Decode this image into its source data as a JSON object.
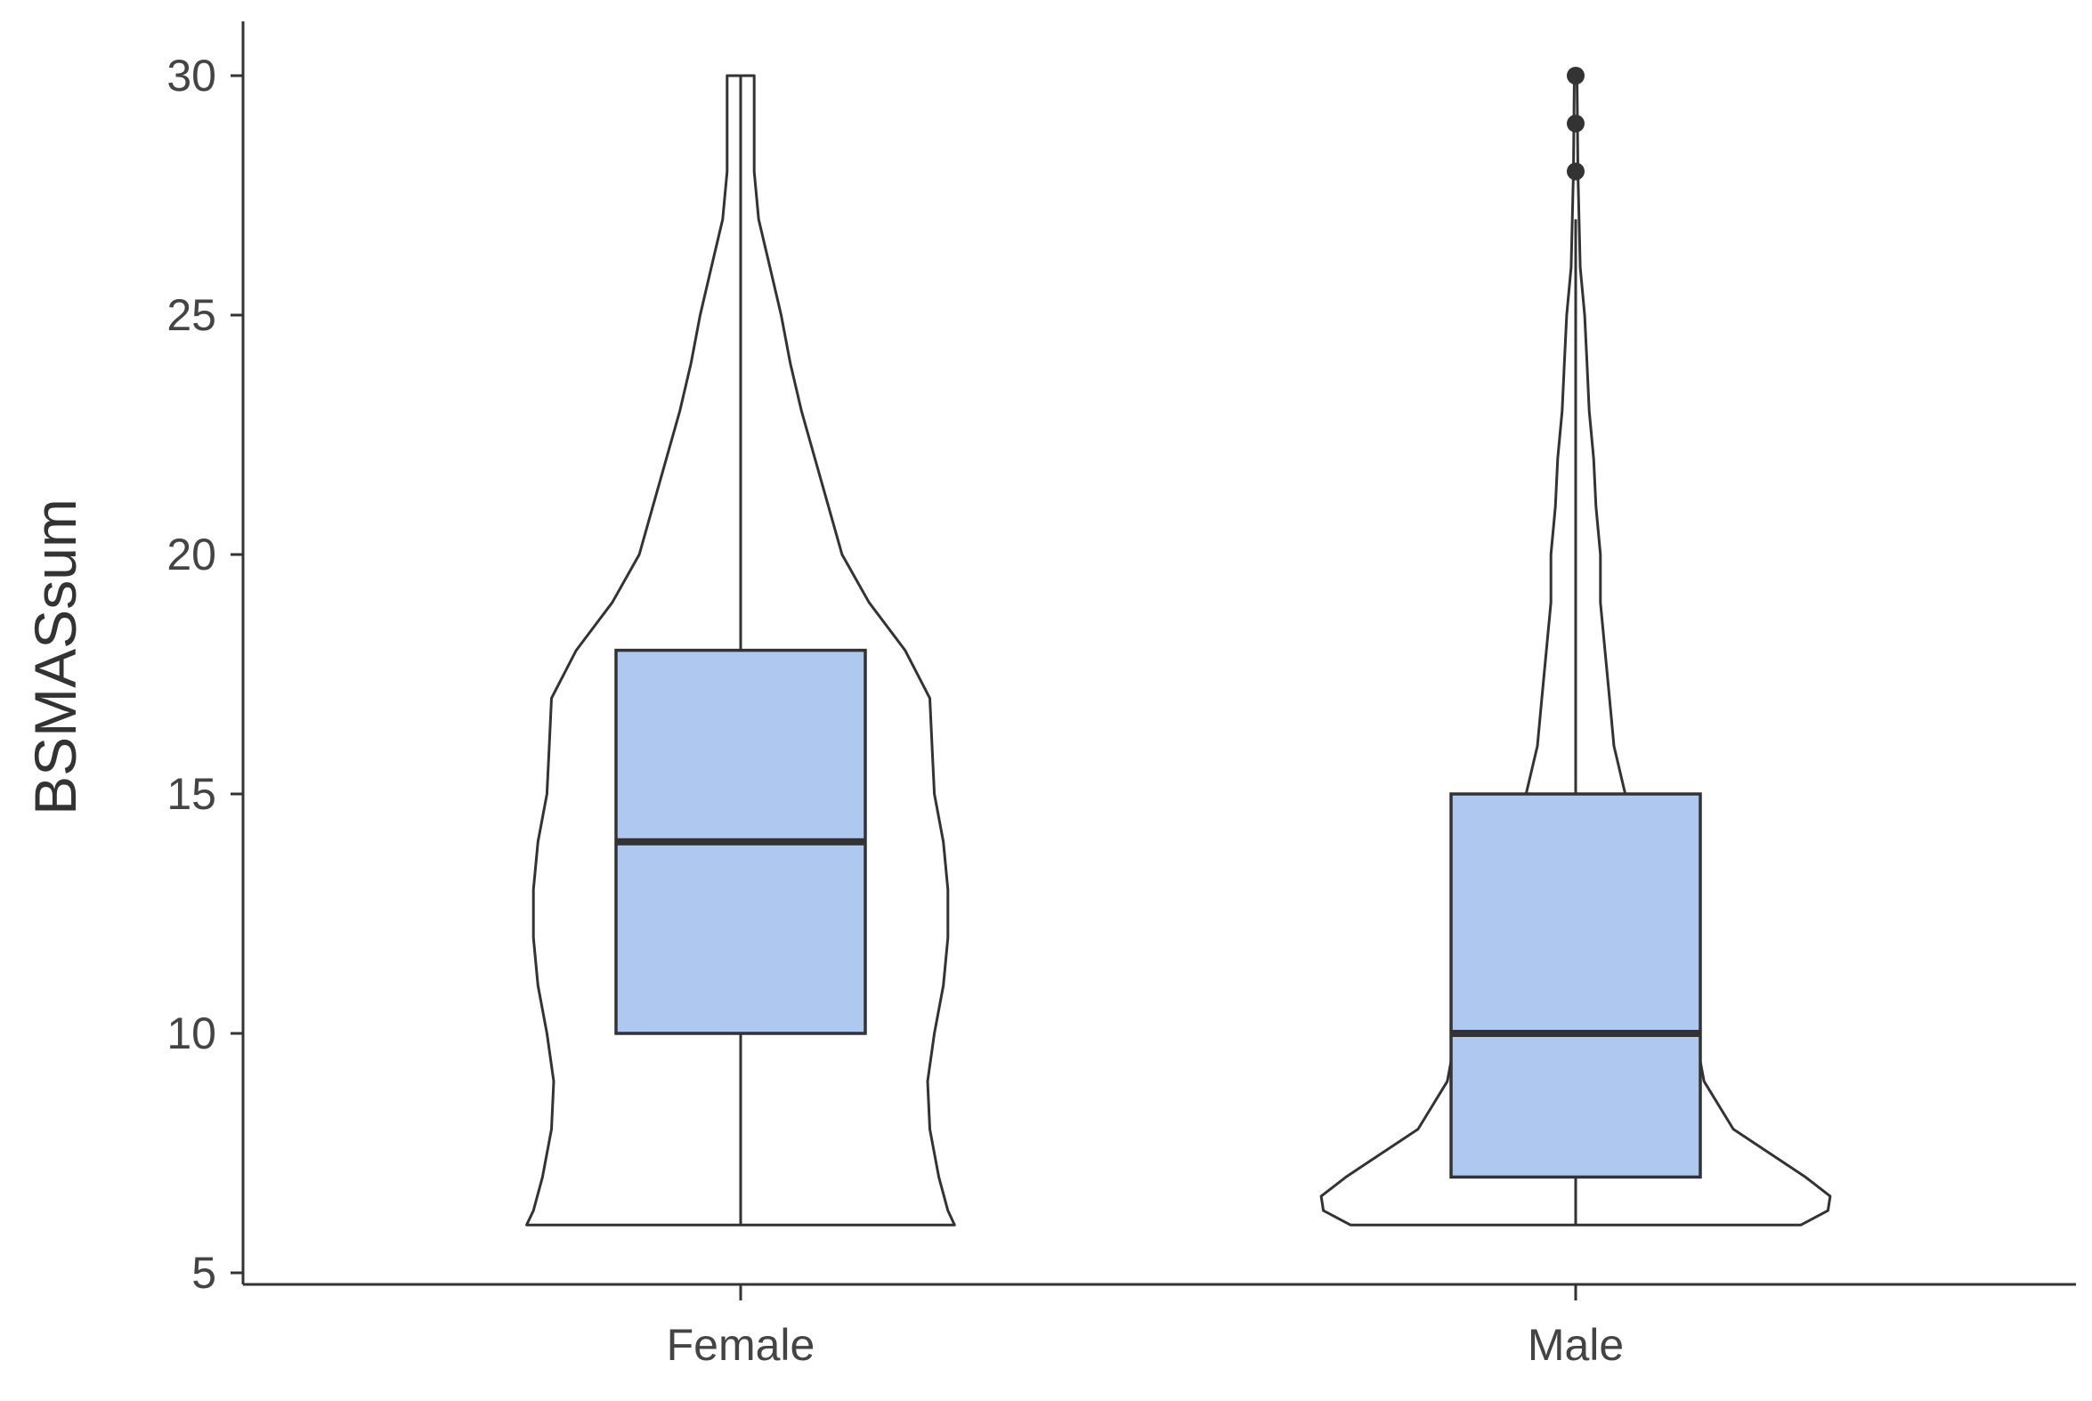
{
  "chart_data": {
    "type": "violin-box",
    "title": "",
    "xlabel": "",
    "ylabel": "BSMASsum",
    "ylim": [
      5,
      31.2
    ],
    "yticks": [
      5,
      10,
      15,
      20,
      25,
      30
    ],
    "grid": false,
    "legend": "none",
    "colors": {
      "box_fill": "#aec8f0",
      "line": "#333333",
      "violin_fill": "#ffffff",
      "axis": "#333333"
    },
    "categories": [
      "Female",
      "Male"
    ],
    "groups": [
      {
        "name": "Female",
        "box": {
          "min": 6,
          "q1": 10,
          "median": 14,
          "q3": 18,
          "max": 30
        },
        "outliers": [],
        "density": [
          [
            6,
            0.95
          ],
          [
            6.3,
            0.92
          ],
          [
            7,
            0.88
          ],
          [
            8,
            0.84
          ],
          [
            9,
            0.83
          ],
          [
            10,
            0.86
          ],
          [
            11,
            0.9
          ],
          [
            12,
            0.92
          ],
          [
            13,
            0.92
          ],
          [
            14,
            0.9
          ],
          [
            15,
            0.86
          ],
          [
            16,
            0.85
          ],
          [
            17,
            0.84
          ],
          [
            18,
            0.73
          ],
          [
            19,
            0.57
          ],
          [
            20,
            0.45
          ],
          [
            21,
            0.39
          ],
          [
            22,
            0.33
          ],
          [
            23,
            0.27
          ],
          [
            24,
            0.22
          ],
          [
            25,
            0.18
          ],
          [
            26,
            0.13
          ],
          [
            27,
            0.08
          ],
          [
            28,
            0.06
          ],
          [
            29,
            0.06
          ],
          [
            30,
            0.06
          ]
        ]
      },
      {
        "name": "Male",
        "box": {
          "min": 6,
          "q1": 7,
          "median": 10,
          "q3": 15,
          "max": 27
        },
        "outliers": [
          28,
          29,
          30
        ],
        "density": [
          [
            6,
            1.0
          ],
          [
            6.3,
            1.12
          ],
          [
            6.6,
            1.13
          ],
          [
            7,
            1.02
          ],
          [
            8,
            0.7
          ],
          [
            9,
            0.57
          ],
          [
            10,
            0.53
          ],
          [
            11,
            0.52
          ],
          [
            12,
            0.5
          ],
          [
            13,
            0.4
          ],
          [
            14,
            0.29
          ],
          [
            15,
            0.22
          ],
          [
            16,
            0.17
          ],
          [
            17,
            0.15
          ],
          [
            18,
            0.13
          ],
          [
            19,
            0.11
          ],
          [
            20,
            0.11
          ],
          [
            21,
            0.09
          ],
          [
            22,
            0.08
          ],
          [
            23,
            0.06
          ],
          [
            24,
            0.05
          ],
          [
            25,
            0.04
          ],
          [
            26,
            0.02
          ],
          [
            27,
            0.015
          ],
          [
            28,
            0.01
          ],
          [
            29,
            0.008
          ],
          [
            30,
            0.006
          ]
        ]
      }
    ]
  }
}
